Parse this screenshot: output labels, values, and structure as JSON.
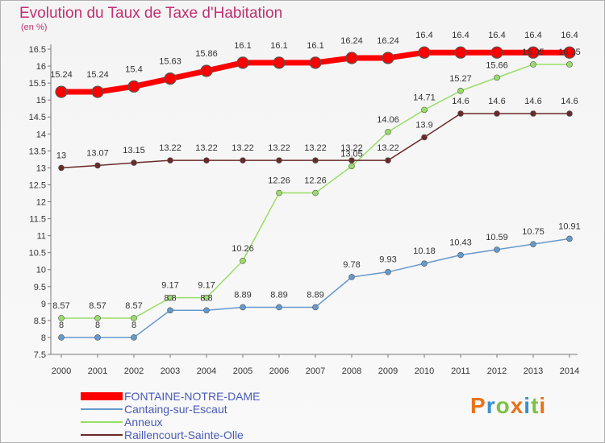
{
  "title": "Evolution du Taux de Taxe d'Habitation",
  "unit": "(en %)",
  "logo": {
    "text": "Proxiti",
    "colors": [
      "#e8731a",
      "#3a8fd1",
      "#7cc142",
      "#e8731a",
      "#3a8fd1",
      "#7cc142",
      "#e8731a"
    ]
  },
  "chart_data": {
    "type": "line",
    "x": [
      "2000",
      "2001",
      "2002",
      "2003",
      "2004",
      "2005",
      "2006",
      "2007",
      "2008",
      "2009",
      "2010",
      "2011",
      "2012",
      "2013",
      "2014"
    ],
    "ylim": [
      7.5,
      16.5
    ],
    "yticks": [
      "7.5",
      "8",
      "8.5",
      "9",
      "9.5",
      "10",
      "10.5",
      "11",
      "11.5",
      "12",
      "12.5",
      "13",
      "13.5",
      "14",
      "14.5",
      "15",
      "15.5",
      "16",
      "16.5"
    ],
    "grid": false,
    "legend_position": "bottom-left",
    "series": [
      {
        "name": "FONTAINE-NOTRE-DAME",
        "color": "#ff0000",
        "width": 7,
        "marker": 7,
        "values": [
          15.24,
          15.24,
          15.4,
          15.63,
          15.86,
          16.1,
          16.1,
          16.1,
          16.24,
          16.24,
          16.4,
          16.4,
          16.4,
          16.4,
          16.4
        ],
        "labels": [
          "15.24",
          "15.24",
          "15.4",
          "15.63",
          "15.86",
          "16.1",
          "16.1",
          "16.1",
          "16.24",
          "16.24",
          "16.4",
          "16.4",
          "16.4",
          "16.4",
          "16.4"
        ]
      },
      {
        "name": "Cantaing-sur-Escaut",
        "color": "#6699cc",
        "width": 1.5,
        "marker": 3.5,
        "values": [
          8,
          8,
          8,
          8.8,
          8.8,
          8.89,
          8.89,
          8.89,
          9.78,
          9.93,
          10.18,
          10.43,
          10.59,
          10.75,
          10.91
        ],
        "labels": [
          "8",
          "8",
          "8",
          "8.8",
          "8.8",
          "8.89",
          "8.89",
          "8.89",
          "9.78",
          "9.93",
          "10.18",
          "10.43",
          "10.59",
          "10.75",
          "10.91"
        ]
      },
      {
        "name": "Anneux",
        "color": "#99dd66",
        "width": 1.5,
        "marker": 3.5,
        "values": [
          8.57,
          8.57,
          8.57,
          9.17,
          9.17,
          10.26,
          12.26,
          12.26,
          13.05,
          14.06,
          14.71,
          15.27,
          15.66,
          16.05,
          16.05
        ],
        "labels": [
          "8.57",
          "8.57",
          "8.57",
          "9.17",
          "9.17",
          "10.26",
          "12.26",
          "12.26",
          "13.05",
          "14.06",
          "14.71",
          "15.27",
          "15.66",
          "16.05",
          "16.05"
        ]
      },
      {
        "name": "Raillencourt-Sainte-Olle",
        "color": "#6b2a2a",
        "width": 1.5,
        "marker": 3.5,
        "values": [
          13,
          13.07,
          13.15,
          13.22,
          13.22,
          13.22,
          13.22,
          13.22,
          13.22,
          13.22,
          13.9,
          14.6,
          14.6,
          14.6,
          14.6
        ],
        "labels": [
          "13",
          "13.07",
          "13.15",
          "13.22",
          "13.22",
          "13.22",
          "13.22",
          "13.22",
          "13.22",
          "13.22",
          "13.9",
          "14.6",
          "14.6",
          "14.6",
          "14.6"
        ]
      }
    ]
  }
}
